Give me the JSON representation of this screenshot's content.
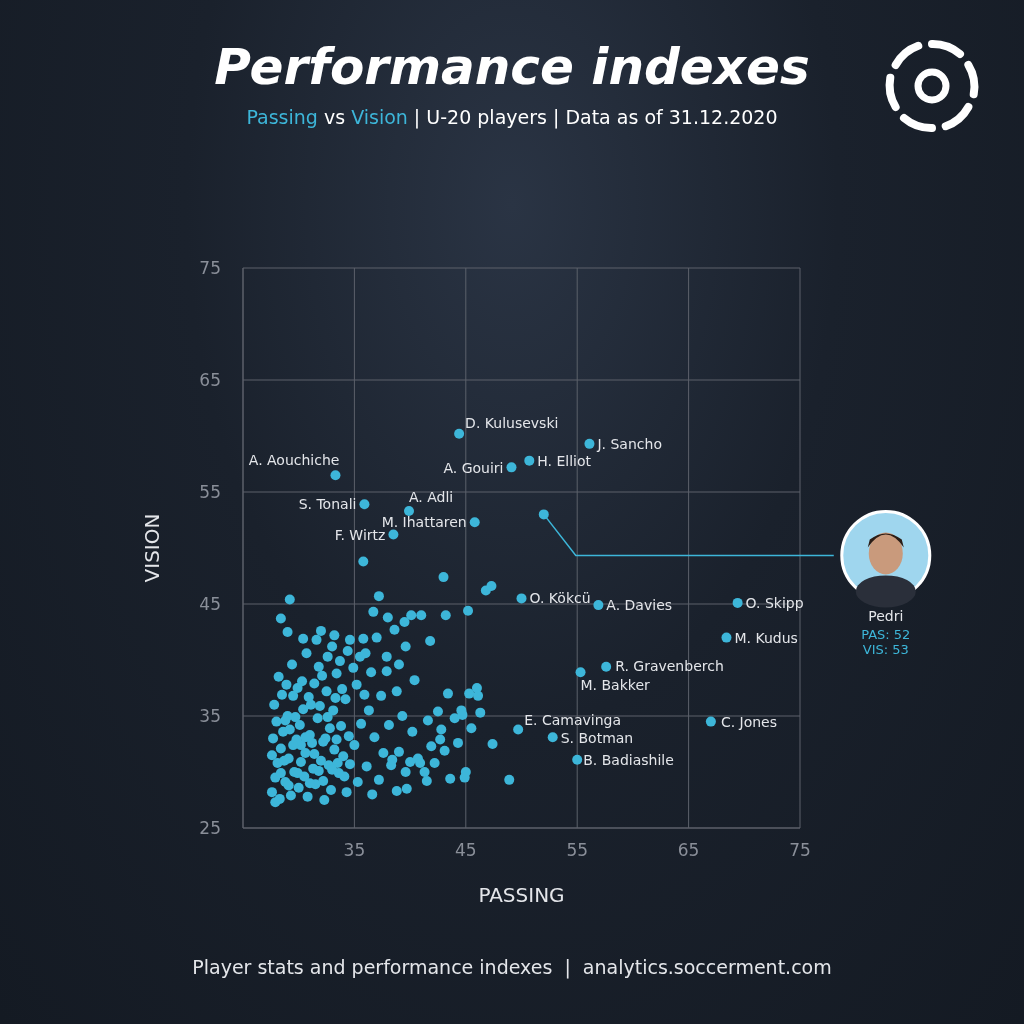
{
  "chart_data": {
    "type": "scatter",
    "title": "Performance indexes",
    "subtitle": "Passing vs Vision | U-20 players | Data as of 31.12.2020",
    "subtitle_highlight": [
      "Passing",
      "Vision"
    ],
    "xlabel": "PASSING",
    "ylabel": "VISION",
    "footer": "Player stats and performance indexes  |  analytics.soccerment.com",
    "xlim": [
      25,
      75
    ],
    "ylim": [
      25,
      75
    ],
    "xticks": [
      35,
      45,
      55,
      65,
      75
    ],
    "yticks": [
      25,
      35,
      45,
      55,
      65,
      75
    ],
    "grid": true,
    "color": "#3db6d9",
    "marker": "circle",
    "labeled_points": [
      {
        "name": "D. Kulusevski",
        "x": 44.4,
        "y": 60.2
      },
      {
        "name": "J. Sancho",
        "x": 56.1,
        "y": 59.3
      },
      {
        "name": "A. Aouchiche",
        "x": 33.3,
        "y": 56.5
      },
      {
        "name": "H. Elliot",
        "x": 50.7,
        "y": 57.8
      },
      {
        "name": "A. Gouiri",
        "x": 49.1,
        "y": 57.2
      },
      {
        "name": "S. Tonali",
        "x": 35.9,
        "y": 53.9
      },
      {
        "name": "A. Adli",
        "x": 39.9,
        "y": 53.3
      },
      {
        "name": "M. Ihattaren",
        "x": 45.8,
        "y": 52.3
      },
      {
        "name": "F. Wirtz",
        "x": 38.5,
        "y": 51.2
      },
      {
        "name": "O. Kökcü",
        "x": 50.0,
        "y": 45.5
      },
      {
        "name": "A. Davies",
        "x": 56.9,
        "y": 44.9
      },
      {
        "name": "O. Skipp",
        "x": 69.4,
        "y": 45.1
      },
      {
        "name": "M. Kudus",
        "x": 68.4,
        "y": 42.0
      },
      {
        "name": "R. Gravenberch",
        "x": 57.6,
        "y": 39.4
      },
      {
        "name": "M. Bakker",
        "x": 55.3,
        "y": 38.9
      },
      {
        "name": "E. Camavinga",
        "x": 49.7,
        "y": 33.8
      },
      {
        "name": "S. Botman",
        "x": 52.8,
        "y": 33.1
      },
      {
        "name": "B. Badiashile",
        "x": 55.0,
        "y": 31.1
      },
      {
        "name": "C. Jones",
        "x": 67.0,
        "y": 34.5
      }
    ],
    "highlight": {
      "name": "Pedri",
      "x": 52,
      "y": 53,
      "labels": [
        "PAS: 52",
        "VIS: 53"
      ]
    },
    "points": [
      [
        27.6,
        28.2
      ],
      [
        27.9,
        29.5
      ],
      [
        28.1,
        30.8
      ],
      [
        28.3,
        27.6
      ],
      [
        28.4,
        32.1
      ],
      [
        28.6,
        33.6
      ],
      [
        28.8,
        29.1
      ],
      [
        29.0,
        35.0
      ],
      [
        29.1,
        31.2
      ],
      [
        29.3,
        27.9
      ],
      [
        29.5,
        36.8
      ],
      [
        29.6,
        30.0
      ],
      [
        29.8,
        32.9
      ],
      [
        30.0,
        28.6
      ],
      [
        30.1,
        34.2
      ],
      [
        30.3,
        38.1
      ],
      [
        30.5,
        29.6
      ],
      [
        30.6,
        31.7
      ],
      [
        30.8,
        27.8
      ],
      [
        31.0,
        33.3
      ],
      [
        31.1,
        36.0
      ],
      [
        31.3,
        30.3
      ],
      [
        31.5,
        28.9
      ],
      [
        31.7,
        34.8
      ],
      [
        31.8,
        39.4
      ],
      [
        32.0,
        31.0
      ],
      [
        32.2,
        29.2
      ],
      [
        32.4,
        33.0
      ],
      [
        32.5,
        37.2
      ],
      [
        32.7,
        30.6
      ],
      [
        32.9,
        28.4
      ],
      [
        33.1,
        35.5
      ],
      [
        33.2,
        32.0
      ],
      [
        33.4,
        38.8
      ],
      [
        33.6,
        29.9
      ],
      [
        33.8,
        34.1
      ],
      [
        34.0,
        31.4
      ],
      [
        34.2,
        36.5
      ],
      [
        34.3,
        28.2
      ],
      [
        34.5,
        33.2
      ],
      [
        27.7,
        33.0
      ],
      [
        27.8,
        36.0
      ],
      [
        28.0,
        34.5
      ],
      [
        28.2,
        38.5
      ],
      [
        28.5,
        36.9
      ],
      [
        28.7,
        31.0
      ],
      [
        28.9,
        37.8
      ],
      [
        29.2,
        33.8
      ],
      [
        29.4,
        39.6
      ],
      [
        29.7,
        34.9
      ],
      [
        29.9,
        37.5
      ],
      [
        30.2,
        32.4
      ],
      [
        30.4,
        35.6
      ],
      [
        30.7,
        40.6
      ],
      [
        30.9,
        36.7
      ],
      [
        31.2,
        32.6
      ],
      [
        31.4,
        37.9
      ],
      [
        31.6,
        41.8
      ],
      [
        31.9,
        35.9
      ],
      [
        32.1,
        38.6
      ],
      [
        32.3,
        27.5
      ],
      [
        32.6,
        40.3
      ],
      [
        32.8,
        33.9
      ],
      [
        33.0,
        41.2
      ],
      [
        33.3,
        36.6
      ],
      [
        33.5,
        30.8
      ],
      [
        33.7,
        39.9
      ],
      [
        33.9,
        37.4
      ],
      [
        34.1,
        29.6
      ],
      [
        34.4,
        40.8
      ],
      [
        27.6,
        31.5
      ],
      [
        27.9,
        27.3
      ],
      [
        28.4,
        29.9
      ],
      [
        28.8,
        34.6
      ],
      [
        29.1,
        28.8
      ],
      [
        29.5,
        32.4
      ],
      [
        29.9,
        29.9
      ],
      [
        30.2,
        30.9
      ],
      [
        30.6,
        33.1
      ],
      [
        31.0,
        29.0
      ],
      [
        31.4,
        31.6
      ],
      [
        31.8,
        30.1
      ],
      [
        32.2,
        32.7
      ],
      [
        32.6,
        34.9
      ],
      [
        33.0,
        30.2
      ],
      [
        33.4,
        32.9
      ],
      [
        34.6,
        30.7
      ],
      [
        35.0,
        32.4
      ],
      [
        35.3,
        29.1
      ],
      [
        35.6,
        34.3
      ],
      [
        35.2,
        37.8
      ],
      [
        35.5,
        40.3
      ],
      [
        35.8,
        41.9
      ],
      [
        36.1,
        30.5
      ],
      [
        36.3,
        35.5
      ],
      [
        36.5,
        38.9
      ],
      [
        36.8,
        33.1
      ],
      [
        37.0,
        42.0
      ],
      [
        37.2,
        29.3
      ],
      [
        37.4,
        36.8
      ],
      [
        37.6,
        31.7
      ],
      [
        37.9,
        39.0
      ],
      [
        38.1,
        34.2
      ],
      [
        38.3,
        30.6
      ],
      [
        38.6,
        42.7
      ],
      [
        38.8,
        37.2
      ],
      [
        39.0,
        31.8
      ],
      [
        39.3,
        35.0
      ],
      [
        39.5,
        43.4
      ],
      [
        39.7,
        28.5
      ],
      [
        40.0,
        30.9
      ],
      [
        40.2,
        33.6
      ],
      [
        40.4,
        38.2
      ],
      [
        40.7,
        31.2
      ],
      [
        41.0,
        44.0
      ],
      [
        41.3,
        30.0
      ],
      [
        41.6,
        34.6
      ],
      [
        41.9,
        32.3
      ],
      [
        42.2,
        30.8
      ],
      [
        42.5,
        35.4
      ],
      [
        42.8,
        33.8
      ],
      [
        43.1,
        31.9
      ],
      [
        43.4,
        37.0
      ],
      [
        43.6,
        29.4
      ],
      [
        44.0,
        34.8
      ],
      [
        44.3,
        32.6
      ],
      [
        44.7,
        35.1
      ],
      [
        45.0,
        30.0
      ],
      [
        45.2,
        44.4
      ],
      [
        45.5,
        33.9
      ],
      [
        46.0,
        37.5
      ],
      [
        46.1,
        36.8
      ],
      [
        46.3,
        35.3
      ],
      [
        47.4,
        32.5
      ],
      [
        48.9,
        29.3
      ],
      [
        44.9,
        29.5
      ],
      [
        43.0,
        47.4
      ],
      [
        46.8,
        46.2
      ],
      [
        47.3,
        46.6
      ],
      [
        43.2,
        44.0
      ],
      [
        35.8,
        48.8
      ],
      [
        37.2,
        45.7
      ],
      [
        29.2,
        45.4
      ],
      [
        28.4,
        43.7
      ],
      [
        29.0,
        42.5
      ],
      [
        30.4,
        41.9
      ],
      [
        32.0,
        42.6
      ],
      [
        33.2,
        42.2
      ],
      [
        34.6,
        41.8
      ],
      [
        36.0,
        40.6
      ],
      [
        38.0,
        43.8
      ],
      [
        39.6,
        41.2
      ],
      [
        40.1,
        44.0
      ],
      [
        36.7,
        44.3
      ],
      [
        41.8,
        41.7
      ],
      [
        37.9,
        40.3
      ],
      [
        35.9,
        36.9
      ],
      [
        34.9,
        39.3
      ],
      [
        39.0,
        39.6
      ],
      [
        38.4,
        31.1
      ],
      [
        39.6,
        30.0
      ],
      [
        40.9,
        30.8
      ],
      [
        36.6,
        28.0
      ],
      [
        38.8,
        28.3
      ],
      [
        41.5,
        29.2
      ],
      [
        42.7,
        32.9
      ],
      [
        44.6,
        35.5
      ],
      [
        45.3,
        37.0
      ]
    ]
  }
}
